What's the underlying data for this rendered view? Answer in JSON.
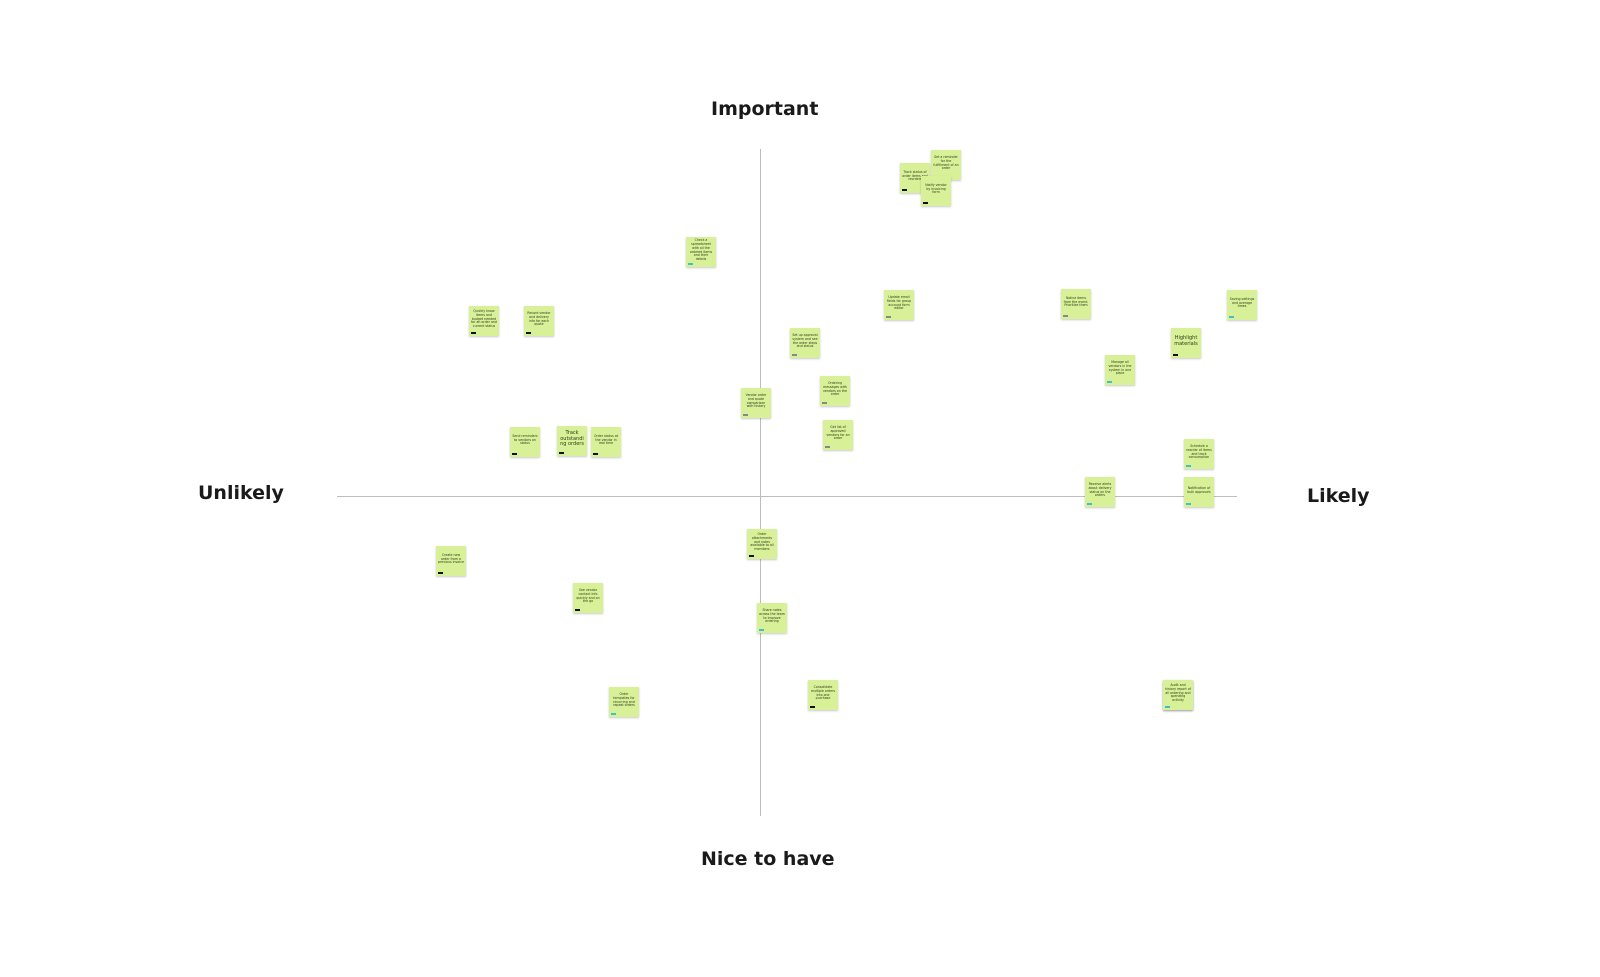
{
  "axes": {
    "top": "Important",
    "bottom": "Nice to have",
    "left": "Unlikely",
    "right": "Likely"
  },
  "colors": {
    "note": "#d8f199",
    "axis": "#bdbdbd",
    "tag_dark": "#111111",
    "tag_gray": "#888888",
    "tag_teal": "#3fbfc9"
  },
  "notes": [
    {
      "text": "Track status of order items and reorders",
      "tag": "dark"
    },
    {
      "text": "Set a reminder for the fulfillment of an order",
      "tag": "dark"
    },
    {
      "text": "Notify vendor by invoicing form",
      "tag": "dark"
    },
    {
      "text": "Check a spreadsheet with all the ordered items and their details",
      "tag": "teal"
    },
    {
      "text": "Update email fields for group account form editor",
      "tag": "gray"
    },
    {
      "text": "Notice items from the event. Prioritize them",
      "tag": "gray"
    },
    {
      "text": "Saving settings and average times",
      "tag": "teal"
    },
    {
      "text": "Quickly know items and budget needed for an order and current status",
      "tag": "dark"
    },
    {
      "text": "Record vendor and delivery info for each quote",
      "tag": "dark"
    },
    {
      "text": "Set up approval system and see the order steps and status",
      "tag": "gray"
    },
    {
      "text": "Highlight materials",
      "tag": "dark",
      "big": true
    },
    {
      "text": "Manage all vendors in the system in one place",
      "tag": "teal"
    },
    {
      "text": "Vendor order and quote comparison with history",
      "tag": "gray"
    },
    {
      "text": "Ordering messages with vendors on the order",
      "tag": "gray"
    },
    {
      "text": "Get list of approved vendors for an order",
      "tag": "gray"
    },
    {
      "text": "Send reminders to vendors on status",
      "tag": "dark"
    },
    {
      "text": "Track outstanding orders",
      "tag": "dark",
      "big": true
    },
    {
      "text": "Order status at the vendor in real time",
      "tag": "dark"
    },
    {
      "text": "Schedule a reorder of items and track consumption",
      "tag": "teal"
    },
    {
      "text": "Receive alerts about delivery status on the orders",
      "tag": "teal"
    },
    {
      "text": "Notification of bulk approvals",
      "tag": "teal"
    },
    {
      "text": "Order attachments and notes available to all members",
      "tag": "dark"
    },
    {
      "text": "Create new order from a previous invoice",
      "tag": "dark"
    },
    {
      "text": "See vendor contact info quickly and on the go",
      "tag": "dark"
    },
    {
      "text": "Share notes across the team to improve ordering",
      "tag": "teal"
    },
    {
      "text": "Order templates for recurring and repeat orders",
      "tag": "teal"
    },
    {
      "text": "Consolidate multiple orders into one purchase",
      "tag": "dark"
    },
    {
      "text": "Notify vendor by invoicing form",
      "tag": "dark"
    },
    {
      "text": "Audit and history report of all ordering and spending activity",
      "tag": "teal"
    }
  ]
}
